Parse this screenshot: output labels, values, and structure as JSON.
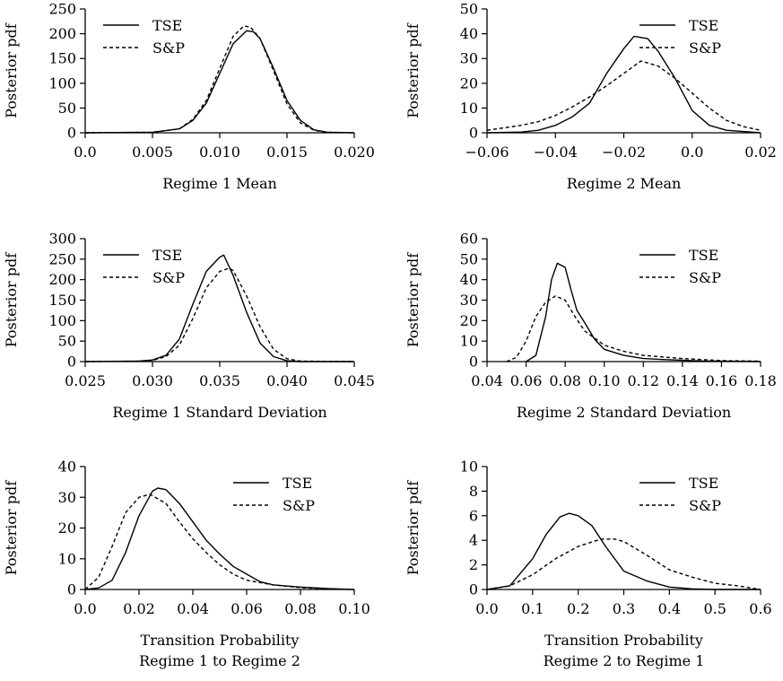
{
  "chart_data": [
    {
      "type": "line",
      "title": "",
      "xlabel": [
        "Regime 1 Mean"
      ],
      "ylabel": "Posterior pdf",
      "xlim": [
        0.0,
        0.02
      ],
      "ylim": [
        0,
        250
      ],
      "xticks": [
        0.0,
        0.005,
        0.01,
        0.015,
        0.02
      ],
      "xtick_labels": [
        "0.0",
        "0.005",
        "0.010",
        "0.015",
        "0.020"
      ],
      "yticks": [
        0,
        50,
        100,
        150,
        200,
        250
      ],
      "ytick_labels": [
        "0",
        "50",
        "100",
        "150",
        "200",
        "250"
      ],
      "legend_position": "top-left",
      "series": [
        {
          "name": "TSE",
          "style": "solid",
          "x": [
            0.0,
            0.005,
            0.007,
            0.008,
            0.009,
            0.01,
            0.011,
            0.012,
            0.0125,
            0.013,
            0.014,
            0.015,
            0.016,
            0.017,
            0.018,
            0.02
          ],
          "y": [
            0,
            1,
            8,
            25,
            60,
            120,
            180,
            206,
            204,
            190,
            130,
            65,
            25,
            6,
            1,
            0
          ]
        },
        {
          "name": "S&P",
          "style": "dashed",
          "x": [
            0.0,
            0.005,
            0.007,
            0.008,
            0.009,
            0.01,
            0.011,
            0.0118,
            0.0123,
            0.013,
            0.014,
            0.015,
            0.016,
            0.017,
            0.018,
            0.02
          ],
          "y": [
            0,
            1,
            8,
            27,
            65,
            130,
            195,
            216,
            213,
            190,
            125,
            58,
            20,
            5,
            1,
            0
          ]
        }
      ]
    },
    {
      "type": "line",
      "title": "",
      "xlabel": [
        "Regime 2 Mean"
      ],
      "ylabel": "Posterior pdf",
      "xlim": [
        -0.06,
        0.02
      ],
      "ylim": [
        0,
        50
      ],
      "xticks": [
        -0.06,
        -0.04,
        -0.02,
        0.0,
        0.02
      ],
      "xtick_labels": [
        "−0.06",
        "−0.04",
        "−0.02",
        "0.0",
        "0.02"
      ],
      "yticks": [
        0,
        10,
        20,
        30,
        40,
        50
      ],
      "ytick_labels": [
        "0",
        "10",
        "20",
        "30",
        "40",
        "50"
      ],
      "legend_position": "top-right",
      "series": [
        {
          "name": "TSE",
          "style": "solid",
          "x": [
            -0.06,
            -0.05,
            -0.045,
            -0.04,
            -0.035,
            -0.03,
            -0.025,
            -0.02,
            -0.017,
            -0.013,
            -0.01,
            -0.005,
            0.0,
            0.005,
            0.01,
            0.02
          ],
          "y": [
            0,
            0.3,
            1,
            3,
            6.5,
            12,
            24,
            34,
            39,
            38,
            33,
            22,
            9,
            3,
            1,
            0
          ]
        },
        {
          "name": "S&P",
          "style": "dashed",
          "x": [
            -0.06,
            -0.05,
            -0.045,
            -0.04,
            -0.035,
            -0.03,
            -0.025,
            -0.02,
            -0.015,
            -0.01,
            -0.005,
            0.0,
            0.005,
            0.01,
            0.015,
            0.02
          ],
          "y": [
            1,
            3,
            4.5,
            7,
            10.5,
            14.5,
            19,
            24,
            29,
            27,
            22,
            16,
            10,
            5,
            2.5,
            1
          ]
        }
      ]
    },
    {
      "type": "line",
      "title": "",
      "xlabel": [
        "Regime 1 Standard Deviation"
      ],
      "ylabel": "Posterior pdf",
      "xlim": [
        0.025,
        0.045
      ],
      "ylim": [
        0,
        300
      ],
      "xticks": [
        0.025,
        0.03,
        0.035,
        0.04,
        0.045
      ],
      "xtick_labels": [
        "0.025",
        "0.030",
        "0.035",
        "0.040",
        "0.045"
      ],
      "yticks": [
        0,
        50,
        100,
        150,
        200,
        250,
        300
      ],
      "ytick_labels": [
        "0",
        "50",
        "100",
        "150",
        "200",
        "250",
        "300"
      ],
      "legend_position": "top-left",
      "series": [
        {
          "name": "TSE",
          "style": "solid",
          "x": [
            0.025,
            0.029,
            0.03,
            0.031,
            0.032,
            0.033,
            0.034,
            0.035,
            0.0353,
            0.036,
            0.037,
            0.038,
            0.039,
            0.04,
            0.041,
            0.045
          ],
          "y": [
            0,
            1,
            4,
            15,
            55,
            140,
            220,
            255,
            260,
            210,
            120,
            45,
            12,
            2,
            0,
            0
          ]
        },
        {
          "name": "S&P",
          "style": "dashed",
          "x": [
            0.025,
            0.029,
            0.03,
            0.031,
            0.032,
            0.033,
            0.034,
            0.035,
            0.0357,
            0.036,
            0.037,
            0.038,
            0.039,
            0.04,
            0.041,
            0.045
          ],
          "y": [
            0,
            1,
            3,
            12,
            40,
            105,
            180,
            220,
            228,
            222,
            160,
            85,
            30,
            7,
            1,
            0
          ]
        }
      ]
    },
    {
      "type": "line",
      "title": "",
      "xlabel": [
        "Regime 2 Standard Deviation"
      ],
      "ylabel": "Posterior pdf",
      "xlim": [
        0.04,
        0.18
      ],
      "ylim": [
        0,
        60
      ],
      "xticks": [
        0.04,
        0.06,
        0.08,
        0.1,
        0.12,
        0.14,
        0.16,
        0.18
      ],
      "xtick_labels": [
        "0.04",
        "0.06",
        "0.08",
        "0.10",
        "0.12",
        "0.14",
        "0.16",
        "0.18"
      ],
      "yticks": [
        0,
        10,
        20,
        30,
        40,
        50,
        60
      ],
      "ytick_labels": [
        "0",
        "10",
        "20",
        "30",
        "40",
        "50",
        "60"
      ],
      "legend_position": "top-right",
      "series": [
        {
          "name": "TSE",
          "style": "solid",
          "x": [
            0.06,
            0.065,
            0.07,
            0.073,
            0.076,
            0.08,
            0.083,
            0.086,
            0.09,
            0.095,
            0.1,
            0.11,
            0.12,
            0.13,
            0.15,
            0.18
          ],
          "y": [
            0,
            3,
            22,
            40,
            48,
            46,
            35,
            25,
            19,
            11,
            6,
            3,
            1.5,
            1,
            0.3,
            0
          ]
        },
        {
          "name": "S&P",
          "style": "dashed",
          "x": [
            0.05,
            0.055,
            0.06,
            0.065,
            0.07,
            0.075,
            0.08,
            0.085,
            0.09,
            0.1,
            0.11,
            0.12,
            0.14,
            0.16,
            0.18
          ],
          "y": [
            0,
            2,
            10,
            22,
            29,
            32,
            30,
            22,
            15,
            8,
            5,
            3,
            1.5,
            0.5,
            0.2
          ]
        }
      ]
    },
    {
      "type": "line",
      "title": "",
      "xlabel": [
        "Transition Probability",
        "Regime 1 to Regime 2"
      ],
      "ylabel": "Posterior pdf",
      "xlim": [
        0.0,
        0.1
      ],
      "ylim": [
        0,
        40
      ],
      "xticks": [
        0.0,
        0.02,
        0.04,
        0.06,
        0.08,
        0.1
      ],
      "xtick_labels": [
        "0.0",
        "0.02",
        "0.04",
        "0.06",
        "0.08",
        "0.10"
      ],
      "yticks": [
        0,
        10,
        20,
        30,
        40
      ],
      "ytick_labels": [
        "0",
        "10",
        "20",
        "30",
        "40"
      ],
      "legend_position": "top-right",
      "series": [
        {
          "name": "TSE",
          "style": "solid",
          "x": [
            0.0,
            0.005,
            0.01,
            0.015,
            0.02,
            0.025,
            0.027,
            0.03,
            0.035,
            0.04,
            0.045,
            0.05,
            0.055,
            0.06,
            0.065,
            0.07,
            0.08,
            0.09,
            0.1
          ],
          "y": [
            0,
            0.5,
            3,
            12,
            24,
            32,
            33,
            32.5,
            28,
            22,
            16,
            11.5,
            7.5,
            5,
            2.5,
            1.5,
            0.8,
            0.3,
            0
          ]
        },
        {
          "name": "S&P",
          "style": "dashed",
          "x": [
            0.0,
            0.005,
            0.01,
            0.015,
            0.02,
            0.024,
            0.03,
            0.035,
            0.04,
            0.045,
            0.05,
            0.055,
            0.06,
            0.07,
            0.08,
            0.09,
            0.1
          ],
          "y": [
            0,
            4,
            14,
            25,
            30,
            31,
            28,
            22,
            16.5,
            12,
            8,
            5,
            3,
            1.5,
            0.6,
            0.2,
            0
          ]
        }
      ]
    },
    {
      "type": "line",
      "title": "",
      "xlabel": [
        "Transition Probability",
        "Regime 2 to Regime 1"
      ],
      "ylabel": "Posterior pdf",
      "xlim": [
        0.0,
        0.6
      ],
      "ylim": [
        0,
        10
      ],
      "xticks": [
        0.0,
        0.1,
        0.2,
        0.3,
        0.4,
        0.5,
        0.6
      ],
      "xtick_labels": [
        "0.0",
        "0.1",
        "0.2",
        "0.3",
        "0.4",
        "0.5",
        "0.6"
      ],
      "yticks": [
        0,
        2,
        4,
        6,
        8,
        10
      ],
      "ytick_labels": [
        "0",
        "2",
        "4",
        "6",
        "8",
        "10"
      ],
      "legend_position": "top-right",
      "series": [
        {
          "name": "TSE",
          "style": "solid",
          "x": [
            0.0,
            0.05,
            0.1,
            0.13,
            0.16,
            0.18,
            0.2,
            0.23,
            0.26,
            0.3,
            0.35,
            0.4,
            0.45,
            0.5,
            0.6
          ],
          "y": [
            0,
            0.3,
            2.5,
            4.5,
            5.9,
            6.2,
            6.0,
            5.2,
            3.5,
            1.5,
            0.7,
            0.2,
            0.05,
            0,
            0
          ]
        },
        {
          "name": "S&P",
          "style": "dashed",
          "x": [
            0.0,
            0.05,
            0.1,
            0.15,
            0.2,
            0.25,
            0.28,
            0.3,
            0.35,
            0.4,
            0.45,
            0.5,
            0.55,
            0.6
          ],
          "y": [
            0,
            0.3,
            1.2,
            2.5,
            3.5,
            4.1,
            4.1,
            3.9,
            2.8,
            1.6,
            1.0,
            0.5,
            0.3,
            0
          ]
        }
      ]
    }
  ]
}
